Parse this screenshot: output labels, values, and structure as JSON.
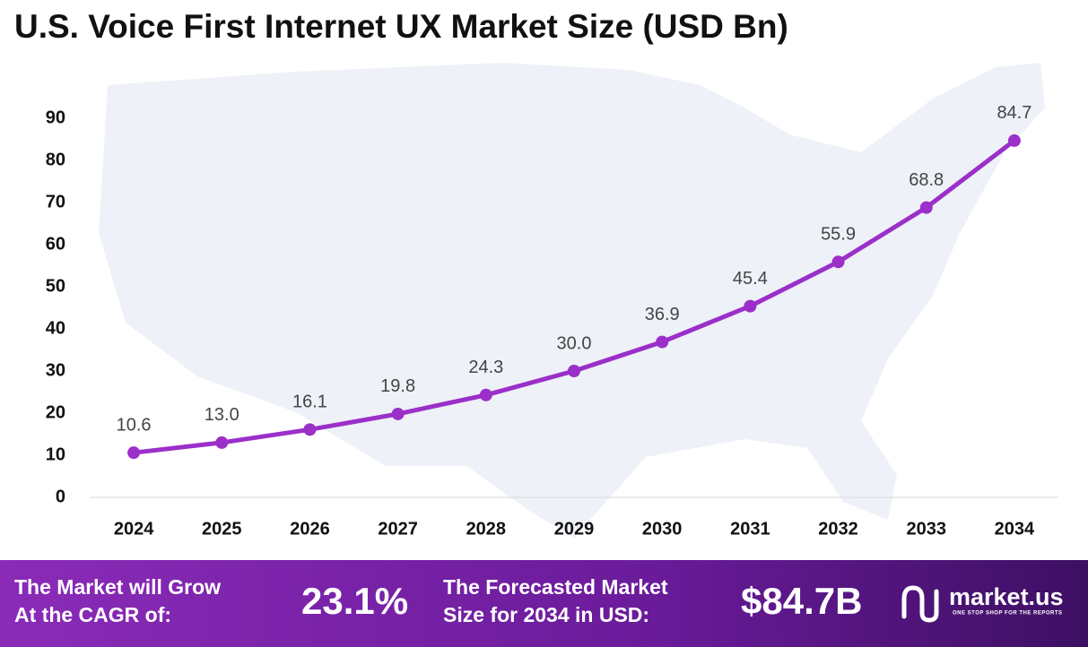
{
  "chart_data": {
    "type": "line",
    "title": "U.S. Voice First Internet UX Market Size (USD Bn)",
    "categories": [
      "2024",
      "2025",
      "2026",
      "2027",
      "2028",
      "2029",
      "2030",
      "2031",
      "2032",
      "2033",
      "2034"
    ],
    "series": [
      {
        "name": "Market Size",
        "color": "#9b2fc9",
        "values": [
          10.6,
          13.0,
          16.1,
          19.8,
          24.3,
          30.0,
          36.9,
          45.4,
          55.9,
          68.8,
          84.7
        ],
        "value_labels": [
          "10.6",
          "13.0",
          "16.1",
          "19.8",
          "24.3",
          "30.0",
          "36.9",
          "45.4",
          "55.9",
          "68.8",
          "84.7"
        ]
      }
    ],
    "ylim": [
      0,
      90
    ],
    "yticks": [
      0,
      10,
      20,
      30,
      40,
      50,
      60,
      70,
      80,
      90
    ],
    "grid": false
  },
  "footer": {
    "cagr_label": [
      "The Market will Grow",
      "At the CAGR of:"
    ],
    "cagr_value": "23.1%",
    "forecast_label": [
      "The Forecasted Market",
      "Size for 2034 in USD:"
    ],
    "forecast_value": "$84.7B",
    "logo": "market.us",
    "tagline": "ONE STOP SHOP FOR THE REPORTS"
  }
}
